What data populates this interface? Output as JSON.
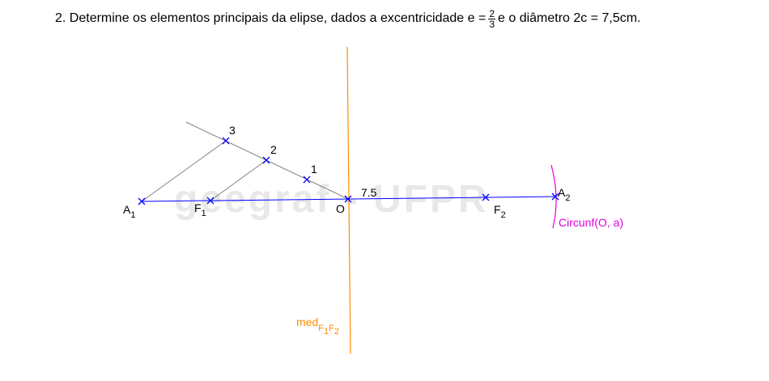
{
  "header": {
    "prefix": "2. Determine os elementos principais da elipse, dados a excentricidade e =",
    "frac_num": "2",
    "frac_den": "3",
    "suffix": "e o diâmetro 2c = 7,5cm."
  },
  "watermark": "geegraf - UFPR",
  "labels": {
    "a1_main": "A",
    "a1_sub": "1",
    "f1_main": "F",
    "f1_sub": "1",
    "o": "O",
    "f2_main": "F",
    "f2_sub": "2",
    "a2_main": "A",
    "a2_sub": "2",
    "div1": "1",
    "div2": "2",
    "div3": "3",
    "distance": "7.5",
    "circle": "Circunf(O, a)",
    "med_main": "med",
    "med_sub1": "F",
    "med_sub1b": "1",
    "med_sub2": "F",
    "med_sub2b": "2"
  },
  "colors": {
    "axis": "#0000ff",
    "construction": "#808080",
    "mediatrix": "#ff8c00",
    "circle": "#e000e0",
    "text": "#000000",
    "watermark": "#e8e8e8"
  }
}
